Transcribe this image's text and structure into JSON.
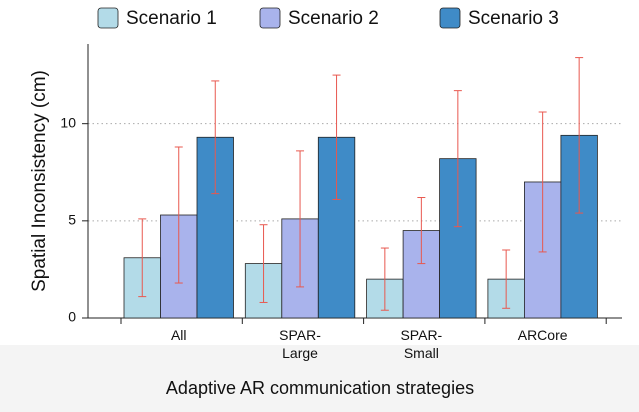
{
  "chart_data": {
    "type": "bar",
    "categories": [
      "All",
      "SPAR-Large",
      "SPAR-Small",
      "ARCore"
    ],
    "series": [
      {
        "name": "Scenario 1",
        "color": "#b3dbe8",
        "values": [
          3.1,
          2.8,
          2.0,
          2.0
        ],
        "errors": [
          2.0,
          2.0,
          1.6,
          1.5
        ]
      },
      {
        "name": "Scenario 2",
        "color": "#a9b3ec",
        "values": [
          5.3,
          5.1,
          4.5,
          7.0
        ],
        "errors": [
          3.5,
          3.5,
          1.7,
          3.6
        ]
      },
      {
        "name": "Scenario 3",
        "color": "#3f8bc7",
        "values": [
          9.3,
          9.3,
          8.2,
          9.4
        ],
        "errors": [
          2.9,
          3.2,
          3.5,
          4.0
        ]
      }
    ],
    "error_color": "#e8584f",
    "ylabel": "Spatial Inconsistency (cm)",
    "xlabel": "Adaptive AR communication strategies",
    "ylim": [
      0,
      14.1
    ],
    "yticks": [
      0,
      5,
      10
    ],
    "grid": true,
    "legend": "top"
  }
}
